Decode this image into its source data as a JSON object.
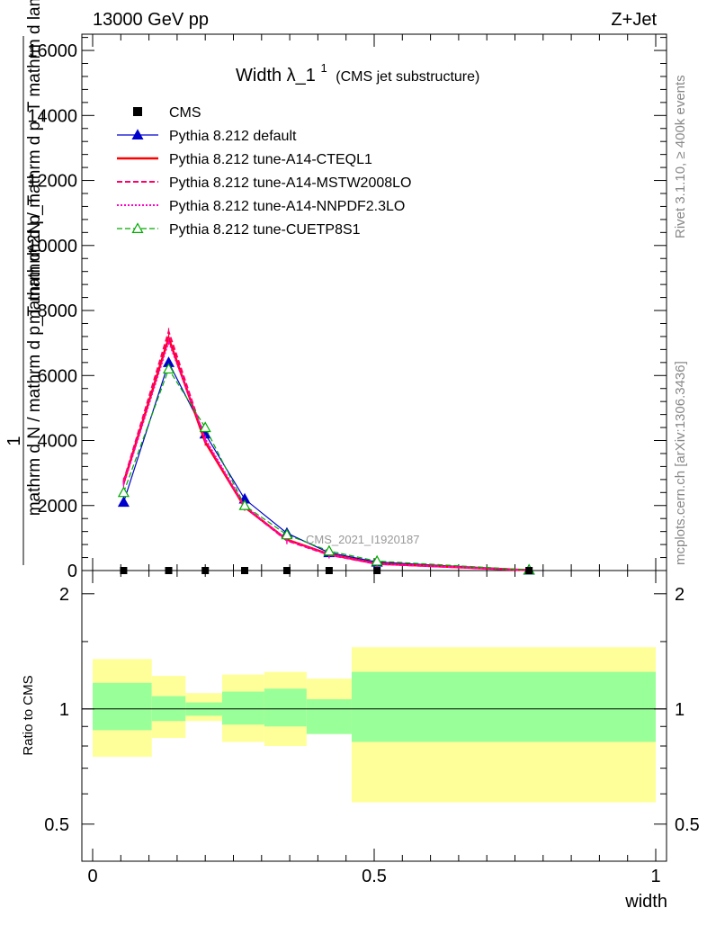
{
  "header": {
    "left": "13000 GeV pp",
    "right": "Z+Jet"
  },
  "side_labels": {
    "rivet": "Rivet 3.1.10, ≥ 400k events",
    "mcplots": "mcplots.cern.ch [arXiv:1306.3436]"
  },
  "chart_data": [
    {
      "type": "line",
      "title_main": "Width λ_1",
      "title_sup": "1",
      "title_tail": "(CMS jet substructure)",
      "watermark": "CMS_2021_I1920187",
      "ylabel_numerator": "1",
      "ylabel_denominator": "mathrm d N / mathrm d p_T mathrm d p_T",
      "ylabel_side": "mathrm d^2N / mathrm d p_T mathrm d lambda",
      "xlim": [
        0,
        1
      ],
      "ylim": [
        0,
        16500
      ],
      "ytick_labels": [
        "0",
        "2000",
        "4000",
        "6000",
        "8000",
        "10000",
        "12000",
        "14000",
        "16000"
      ],
      "series": [
        {
          "name": "CMS",
          "color": "#000000",
          "style": "data",
          "x": [
            0.055,
            0.135,
            0.2,
            0.27,
            0.345,
            0.42,
            0.505,
            0.775
          ],
          "y": [
            0,
            0,
            0,
            0,
            0,
            0,
            0,
            0
          ]
        },
        {
          "name": "Pythia 8.212 default",
          "color": "#0000cc",
          "style": "solid-tri",
          "x": [
            0.055,
            0.135,
            0.2,
            0.27,
            0.345,
            0.42,
            0.505,
            0.775
          ],
          "y": [
            2100,
            6400,
            4200,
            2200,
            1150,
            550,
            260,
            15
          ]
        },
        {
          "name": "Pythia 8.212 tune-A14-CTEQL1",
          "color": "#ff0000",
          "style": "solid-thick",
          "x": [
            0.055,
            0.135,
            0.2,
            0.27,
            0.345,
            0.42,
            0.505,
            0.775
          ],
          "y": [
            2700,
            7150,
            3950,
            1950,
            950,
            500,
            210,
            10
          ]
        },
        {
          "name": "Pythia 8.212 tune-A14-MSTW2008LO",
          "color": "#ff0066",
          "style": "dashed",
          "x": [
            0.055,
            0.135,
            0.2,
            0.27,
            0.345,
            0.42,
            0.505,
            0.775
          ],
          "y": [
            2750,
            7350,
            4000,
            1950,
            920,
            480,
            200,
            10
          ]
        },
        {
          "name": "Pythia 8.212 tune-A14-NNPDF2.3LO",
          "color": "#ff00cc",
          "style": "dotted",
          "x": [
            0.055,
            0.135,
            0.2,
            0.27,
            0.345,
            0.42,
            0.505,
            0.775
          ],
          "y": [
            2650,
            7050,
            4050,
            1980,
            940,
            490,
            205,
            10
          ]
        },
        {
          "name": "Pythia 8.212 tune-CUETP8S1",
          "color": "#00aa00",
          "style": "dashed-tri",
          "x": [
            0.055,
            0.135,
            0.2,
            0.27,
            0.345,
            0.42,
            0.505,
            0.775
          ],
          "y": [
            2400,
            6200,
            4400,
            2000,
            1100,
            600,
            290,
            20
          ]
        }
      ]
    },
    {
      "type": "area",
      "ylabel": "Ratio to CMS",
      "xlabel": "width",
      "xlim": [
        0,
        1
      ],
      "ylim": [
        0.4,
        2.3
      ],
      "xtick_labels": [
        "0",
        "0.5",
        "1"
      ],
      "ytick_labels": [
        "0.5",
        "1",
        "2"
      ],
      "reference_line": 1,
      "bins": [
        {
          "lo": 0.0,
          "hi": 0.105,
          "in_lo": 0.88,
          "in_hi": 1.17,
          "out_lo": 0.75,
          "out_hi": 1.35
        },
        {
          "lo": 0.105,
          "hi": 0.165,
          "in_lo": 0.93,
          "in_hi": 1.08,
          "out_lo": 0.84,
          "out_hi": 1.22
        },
        {
          "lo": 0.165,
          "hi": 0.23,
          "in_lo": 0.96,
          "in_hi": 1.04,
          "out_lo": 0.93,
          "out_hi": 1.1
        },
        {
          "lo": 0.23,
          "hi": 0.305,
          "in_lo": 0.91,
          "in_hi": 1.11,
          "out_lo": 0.82,
          "out_hi": 1.23
        },
        {
          "lo": 0.305,
          "hi": 0.38,
          "in_lo": 0.9,
          "in_hi": 1.13,
          "out_lo": 0.8,
          "out_hi": 1.25
        },
        {
          "lo": 0.38,
          "hi": 0.46,
          "in_lo": 0.86,
          "in_hi": 1.06,
          "out_lo": 0.86,
          "out_hi": 1.2
        },
        {
          "lo": 0.46,
          "hi": 1.0,
          "in_lo": 0.82,
          "in_hi": 1.25,
          "out_lo": 0.57,
          "out_hi": 1.45
        }
      ],
      "band_colors": {
        "inner": "#99ff99",
        "outer": "#ffff99"
      }
    }
  ]
}
